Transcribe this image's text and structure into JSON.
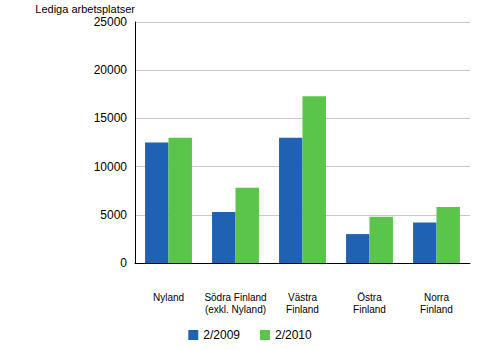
{
  "chart_data": {
    "type": "bar",
    "y_label": "Lediga arbetsplatser",
    "categories": [
      "Nyland",
      "Södra Finland\n(exkl. Nyland)",
      "Västra\nFinland",
      "Östra\nFinland",
      "Norra\nFinland"
    ],
    "series": [
      {
        "name": "2/2009",
        "color": "#1f62b3",
        "values": [
          12500,
          5300,
          13000,
          3000,
          4200
        ]
      },
      {
        "name": "2/2010",
        "color": "#5bc44b",
        "values": [
          13000,
          7800,
          17300,
          4800,
          5800
        ]
      }
    ],
    "ylim": [
      0,
      25000
    ],
    "yticks": [
      0,
      5000,
      10000,
      15000,
      20000,
      25000
    ],
    "grid": true,
    "legend": "bottom"
  }
}
